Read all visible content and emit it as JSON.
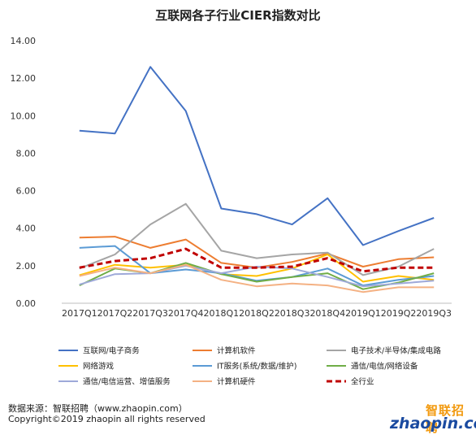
{
  "chart_data": {
    "type": "line",
    "title": "互联网各子行业CIER指数对比",
    "categories": [
      "2017Q1",
      "2017Q2",
      "2017Q3",
      "2017Q4",
      "2018Q1",
      "2018Q2",
      "2018Q3",
      "2018Q4",
      "2019Q1",
      "2019Q2",
      "2019Q3"
    ],
    "ylim": [
      0,
      14
    ],
    "yticks": [
      "0.00",
      "2.00",
      "4.00",
      "6.00",
      "8.00",
      "10.00",
      "12.00",
      "14.00"
    ],
    "grid": false,
    "legend_position": "bottom",
    "series": [
      {
        "name": "互联网/电子商务",
        "color": "#4472c4",
        "dashed": false,
        "values": [
          9.2,
          9.05,
          12.6,
          10.25,
          5.05,
          4.75,
          4.2,
          5.6,
          3.1,
          3.85,
          4.55
        ]
      },
      {
        "name": "计算机软件",
        "color": "#ed7d31",
        "dashed": false,
        "values": [
          3.5,
          3.55,
          2.95,
          3.4,
          2.15,
          1.9,
          2.2,
          2.65,
          1.95,
          2.35,
          2.45
        ]
      },
      {
        "name": "电子技术/半导体/集成电路",
        "color": "#a5a5a5",
        "dashed": false,
        "values": [
          1.85,
          2.6,
          4.2,
          5.3,
          2.8,
          2.4,
          2.6,
          2.7,
          1.5,
          1.95,
          2.9
        ]
      },
      {
        "name": "网络游戏",
        "color": "#ffc000",
        "dashed": false,
        "values": [
          1.5,
          2.05,
          1.9,
          2.05,
          1.55,
          1.45,
          1.85,
          2.6,
          1.15,
          1.45,
          1.25
        ]
      },
      {
        "name": "IT服务(系统/数据/维护)",
        "color": "#5b9bd5",
        "dashed": false,
        "values": [
          2.95,
          3.05,
          1.6,
          1.8,
          1.6,
          1.2,
          1.4,
          1.85,
          0.95,
          1.25,
          1.45
        ]
      },
      {
        "name": "通信/电信/网络设备",
        "color": "#70ad47",
        "dashed": false,
        "values": [
          0.95,
          1.85,
          1.6,
          2.15,
          1.55,
          1.15,
          1.4,
          1.6,
          0.75,
          1.1,
          1.6
        ]
      },
      {
        "name": "通信/电信运营、增值服务",
        "color": "#9ea9d9",
        "dashed": false,
        "values": [
          1.0,
          1.55,
          1.6,
          2.0,
          1.6,
          1.95,
          1.85,
          1.4,
          0.9,
          1.05,
          1.2
        ]
      },
      {
        "name": "计算机硬件",
        "color": "#f4b183",
        "dashed": false,
        "values": [
          1.45,
          1.9,
          1.6,
          2.05,
          1.25,
          0.9,
          1.05,
          0.95,
          0.6,
          0.85,
          0.85
        ]
      },
      {
        "name": "全行业",
        "color": "#c00000",
        "dashed": true,
        "values": [
          1.9,
          2.25,
          2.4,
          2.9,
          1.9,
          1.9,
          1.95,
          2.4,
          1.7,
          1.9,
          1.9
        ]
      }
    ]
  },
  "footer": {
    "source": "数据来源：智联招聘（www.zhaopin.com）",
    "copyright": "Copyright©2019 zhaopin all rights reserved"
  },
  "logo": {
    "cn": "智联招聘",
    "en": "zhaopin.com"
  }
}
